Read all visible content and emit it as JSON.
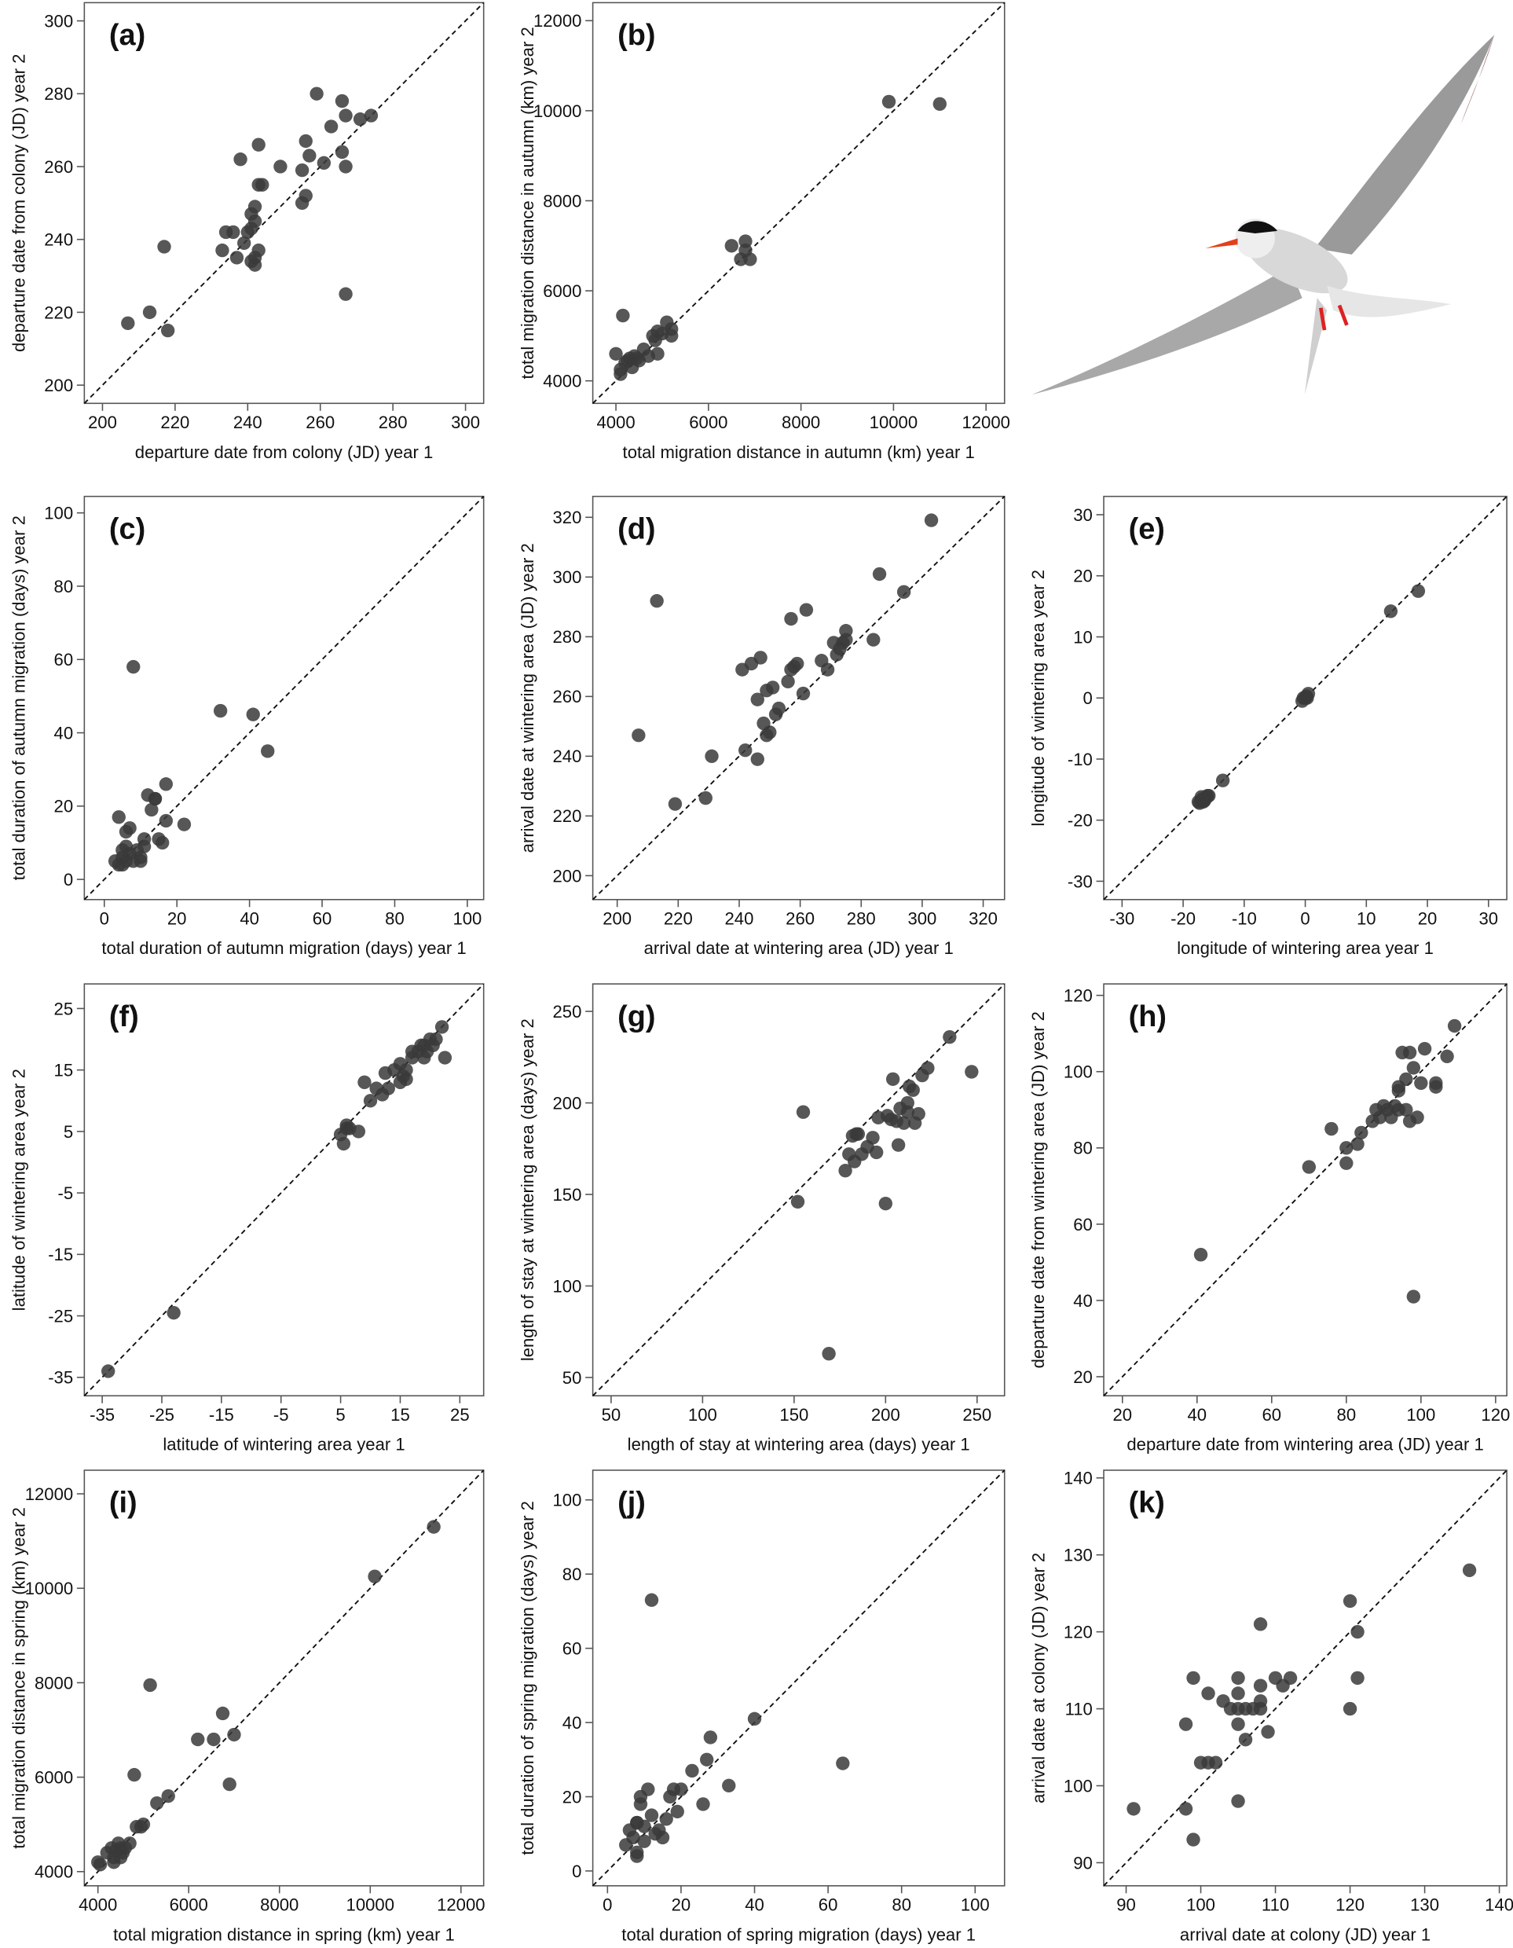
{
  "chart_data": [
    {
      "type": "scatter",
      "label": "(a)",
      "xlabel": "departure date from colony (JD) year 1",
      "ylabel": "departure date from colony (JD) year 2",
      "color": "#3a3a3a",
      "xlim": [
        195,
        305
      ],
      "ylim": [
        195,
        305
      ],
      "xticks": [
        200,
        220,
        240,
        260,
        280,
        300
      ],
      "yticks": [
        200,
        220,
        240,
        260,
        280,
        300
      ],
      "x": [
        207,
        213,
        217,
        218,
        233,
        234,
        236,
        237,
        238,
        239,
        240,
        241,
        241,
        242,
        242,
        242,
        242,
        243,
        243,
        244,
        243,
        249,
        255,
        255,
        256,
        256,
        257,
        259,
        261,
        263,
        266,
        266,
        267,
        267,
        267,
        271,
        274,
        241
      ],
      "values": [
        217,
        220,
        238,
        215,
        237,
        242,
        242,
        235,
        262,
        239,
        242,
        243,
        234,
        235,
        233,
        245,
        249,
        255,
        266,
        255,
        237,
        260,
        250,
        259,
        252,
        267,
        263,
        280,
        261,
        271,
        278,
        264,
        274,
        260,
        225,
        273,
        274,
        247
      ]
    },
    {
      "type": "scatter",
      "label": "(b)",
      "xlabel": "total migration distance in autumn (km) year 1",
      "ylabel": "total migration distance in autumn (km) year 2",
      "color": "#3a3a3a",
      "xlim": [
        3500,
        12400
      ],
      "ylim": [
        3500,
        12400
      ],
      "xticks": [
        4000,
        6000,
        8000,
        10000,
        12000
      ],
      "yticks": [
        4000,
        6000,
        8000,
        10000,
        12000
      ],
      "x": [
        4000,
        4100,
        4150,
        4100,
        4200,
        4300,
        4350,
        4400,
        4500,
        4600,
        4700,
        4800,
        4850,
        4900,
        4900,
        5000,
        5100,
        5200,
        5200,
        6500,
        6700,
        6800,
        6900,
        6800,
        9900,
        11000,
        4450,
        4250
      ],
      "values": [
        4600,
        4150,
        5450,
        4250,
        4400,
        4500,
        4300,
        4550,
        4450,
        4700,
        4550,
        5000,
        4900,
        4600,
        5100,
        5050,
        5300,
        5150,
        5000,
        7000,
        6700,
        7100,
        6700,
        6900,
        10200,
        10150,
        4500,
        4450
      ]
    },
    {
      "type": "scatter",
      "label": "(c)",
      "xlabel": "total duration of autumn migration (days) year 1",
      "ylabel": "total duration of autumn migration (days) year 2",
      "color": "#3a3a3a",
      "xlim": [
        -5.5,
        104.5
      ],
      "ylim": [
        -5.5,
        104.5
      ],
      "xticks": [
        0,
        20,
        40,
        60,
        80,
        100
      ],
      "yticks": [
        0,
        20,
        40,
        60,
        80,
        100
      ],
      "x": [
        4,
        5,
        5,
        6,
        6,
        7,
        7,
        8,
        8,
        9,
        10,
        10,
        11,
        11,
        12,
        13,
        14,
        15,
        16,
        17,
        17,
        22,
        32,
        41,
        45,
        6,
        4,
        3,
        5,
        14
      ],
      "values": [
        17,
        6,
        4,
        9,
        5,
        7,
        14,
        58,
        5,
        8,
        6,
        5,
        11,
        9,
        23,
        19,
        22,
        11,
        10,
        26,
        16,
        15,
        46,
        45,
        35,
        13,
        4,
        5,
        8,
        22
      ]
    },
    {
      "type": "scatter",
      "label": "(d)",
      "xlabel": "arrival date at wintering area (JD) year 1",
      "ylabel": "arrival date at wintering area (JD) year 2",
      "color": "#3a3a3a",
      "xlim": [
        192,
        327
      ],
      "ylim": [
        192,
        327
      ],
      "xticks": [
        200,
        220,
        240,
        260,
        280,
        300,
        320
      ],
      "yticks": [
        200,
        220,
        240,
        260,
        280,
        300,
        320
      ],
      "x": [
        207,
        213,
        219,
        229,
        231,
        241,
        242,
        244,
        246,
        246,
        247,
        248,
        249,
        249,
        250,
        251,
        252,
        253,
        256,
        257,
        258,
        259,
        261,
        262,
        267,
        269,
        271,
        272,
        273,
        274,
        275,
        275,
        284,
        286,
        294,
        303,
        257
      ],
      "values": [
        247,
        292,
        224,
        226,
        240,
        269,
        242,
        271,
        259,
        239,
        273,
        251,
        262,
        247,
        248,
        263,
        254,
        256,
        265,
        286,
        270,
        271,
        261,
        289,
        272,
        269,
        278,
        274,
        276,
        278,
        282,
        279,
        279,
        301,
        295,
        319,
        269
      ]
    },
    {
      "type": "scatter",
      "label": "(e)",
      "xlabel": "longitude of wintering area year 1",
      "ylabel": "longitude of wintering area year 2",
      "color": "#3a3a3a",
      "xlim": [
        -33,
        33
      ],
      "ylim": [
        -33,
        33
      ],
      "xticks": [
        -30,
        -20,
        -10,
        0,
        10,
        20,
        30
      ],
      "yticks": [
        -30,
        -20,
        -10,
        0,
        10,
        20,
        30
      ],
      "x": [
        -17.5,
        -17,
        -16.8,
        -16.5,
        -16.2,
        -16,
        -17.3,
        -16.7,
        -15.8,
        -13.5,
        -0.5,
        0,
        0.2,
        0.5,
        -0.3,
        0.3,
        14,
        18.5,
        -17,
        -16.5
      ],
      "values": [
        -17,
        -16.8,
        -16.5,
        -16.5,
        -16.3,
        -16,
        -17.2,
        -17,
        -16,
        -13.5,
        -0.5,
        0,
        0.3,
        0.7,
        0,
        0,
        14.2,
        17.5,
        -16.2,
        -16.8
      ]
    },
    {
      "type": "scatter",
      "label": "(f)",
      "xlabel": "latitude of wintering area year 1",
      "ylabel": "latitude of wintering area year 2",
      "color": "#3a3a3a",
      "xlim": [
        -38,
        29
      ],
      "ylim": [
        -38,
        29
      ],
      "xticks": [
        -35,
        -25,
        -15,
        -5,
        5,
        15,
        25
      ],
      "yticks": [
        -35,
        -25,
        -15,
        -5,
        5,
        15,
        25
      ],
      "x": [
        -34,
        -23,
        5,
        5.5,
        6,
        6,
        6.5,
        8,
        9,
        10,
        11,
        12,
        12.5,
        13,
        14,
        15,
        15.5,
        15,
        16,
        17,
        18,
        18.5,
        19,
        19.5,
        20,
        20.5,
        21,
        22,
        22.5,
        16,
        17,
        19
      ],
      "values": [
        -34,
        -24.5,
        4.5,
        3,
        6,
        5.5,
        5.5,
        5,
        13,
        10,
        12,
        11,
        14.5,
        12,
        15,
        13,
        14,
        16,
        15,
        17,
        18,
        19,
        17,
        18,
        20,
        19,
        20,
        22,
        17,
        13.5,
        18,
        19
      ]
    },
    {
      "type": "scatter",
      "label": "(g)",
      "xlabel": "length of stay at wintering area (days) year 1",
      "ylabel": "length of stay at wintering area (days) year 2",
      "color": "#3a3a3a",
      "xlim": [
        40,
        265
      ],
      "ylim": [
        40,
        265
      ],
      "xticks": [
        50,
        100,
        150,
        200,
        250
      ],
      "yticks": [
        50,
        100,
        150,
        200,
        250
      ],
      "x": [
        152,
        155,
        169,
        178,
        180,
        182,
        183,
        184,
        185,
        187,
        190,
        193,
        195,
        196,
        200,
        201,
        203,
        204,
        206,
        207,
        208,
        210,
        212,
        213,
        215,
        216,
        218,
        220,
        223,
        235,
        247,
        212
      ],
      "values": [
        146,
        195,
        63,
        163,
        172,
        182,
        168,
        183,
        183,
        172,
        176,
        181,
        173,
        192,
        145,
        193,
        191,
        213,
        190,
        177,
        197,
        189,
        195,
        209,
        207,
        189,
        194,
        215,
        219,
        236,
        217,
        200
      ]
    },
    {
      "type": "scatter",
      "label": "(h)",
      "xlabel": "departure date from wintering area (JD) year 1",
      "ylabel": "departure date from wintering area (JD) year 2",
      "color": "#3a3a3a",
      "xlim": [
        15,
        123
      ],
      "ylim": [
        15,
        123
      ],
      "xticks": [
        20,
        40,
        60,
        80,
        100,
        120
      ],
      "yticks": [
        20,
        40,
        60,
        80,
        100,
        120
      ],
      "x": [
        41,
        70,
        76,
        80,
        80,
        83,
        84,
        87,
        88,
        89,
        90,
        91,
        92,
        93,
        94,
        94,
        95,
        96,
        96,
        97,
        97,
        98,
        98,
        99,
        100,
        101,
        104,
        104,
        107,
        109,
        94
      ],
      "values": [
        52,
        75,
        85,
        76,
        80,
        81,
        84,
        87,
        90,
        88,
        91,
        90,
        88,
        91,
        95,
        90,
        105,
        90,
        98,
        87,
        105,
        101,
        41,
        88,
        97,
        106,
        96,
        97,
        104,
        112,
        96
      ]
    },
    {
      "type": "scatter",
      "label": "(i)",
      "xlabel": "total migration distance in spring (km) year 1",
      "ylabel": "total migration distance in spring (km) year 2",
      "color": "#3a3a3a",
      "xlim": [
        3700,
        12500
      ],
      "ylim": [
        3700,
        12500
      ],
      "xticks": [
        4000,
        6000,
        8000,
        10000,
        12000
      ],
      "yticks": [
        4000,
        6000,
        8000,
        10000,
        12000
      ],
      "x": [
        4000,
        4050,
        4200,
        4300,
        4350,
        4400,
        4450,
        4500,
        4550,
        4600,
        4700,
        4800,
        4850,
        4950,
        5000,
        5150,
        5300,
        5550,
        6200,
        6550,
        6750,
        6900,
        7000,
        10100,
        11400,
        4350,
        4500
      ],
      "values": [
        4200,
        4150,
        4400,
        4500,
        4300,
        4450,
        4600,
        4500,
        4400,
        4500,
        4600,
        6050,
        4950,
        4950,
        5000,
        7950,
        5450,
        5600,
        6800,
        6800,
        7350,
        5850,
        6900,
        10250,
        11300,
        4200,
        4300
      ]
    },
    {
      "type": "scatter",
      "label": "(j)",
      "xlabel": "total duration of spring migration (days) year 1",
      "ylabel": "total duration of spring migration (days) year 2",
      "color": "#3a3a3a",
      "xlim": [
        -4,
        108
      ],
      "ylim": [
        -4,
        108
      ],
      "xticks": [
        0,
        20,
        40,
        60,
        80,
        100
      ],
      "yticks": [
        0,
        20,
        40,
        60,
        80,
        100
      ],
      "x": [
        5,
        6,
        7,
        8,
        8,
        8,
        9,
        9,
        10,
        10,
        11,
        12,
        12,
        13,
        14,
        15,
        16,
        17,
        18,
        19,
        20,
        23,
        26,
        27,
        28,
        33,
        40,
        64,
        8
      ],
      "values": [
        7,
        11,
        9,
        13,
        5,
        4,
        18,
        20,
        12,
        8,
        22,
        73,
        15,
        10,
        11,
        9,
        14,
        20,
        22,
        16,
        22,
        27,
        18,
        30,
        36,
        23,
        41,
        29,
        13
      ]
    },
    {
      "type": "scatter",
      "label": "(k)",
      "xlabel": "arrival date at colony (JD) year 1",
      "ylabel": "arrival date at colony (JD) year 2",
      "color": "#3a3a3a",
      "xlim": [
        87,
        141
      ],
      "ylim": [
        87,
        141
      ],
      "xticks": [
        90,
        100,
        110,
        120,
        130,
        140
      ],
      "yticks": [
        90,
        100,
        110,
        120,
        130,
        140
      ],
      "x": [
        91,
        98,
        98,
        99,
        99,
        100,
        101,
        101,
        102,
        103,
        104,
        105,
        105,
        105,
        105,
        105,
        106,
        106,
        107,
        108,
        108,
        108,
        108,
        109,
        110,
        111,
        112,
        120,
        120,
        121,
        121,
        136
      ],
      "values": [
        97,
        97,
        108,
        93,
        114,
        103,
        103,
        112,
        103,
        111,
        110,
        114,
        112,
        98,
        108,
        110,
        110,
        106,
        110,
        113,
        111,
        121,
        110,
        107,
        114,
        113,
        114,
        124,
        110,
        120,
        114,
        128
      ]
    }
  ]
}
